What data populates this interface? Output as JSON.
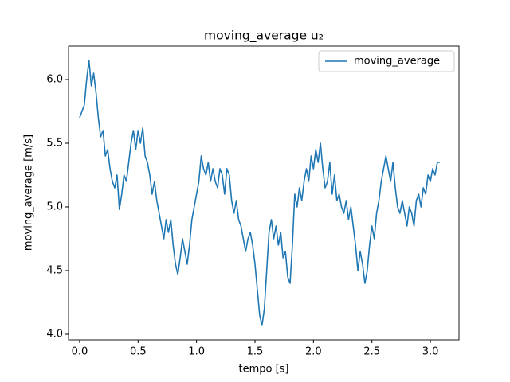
{
  "chart_data": {
    "type": "line",
    "title": "moving_average u₂",
    "xlabel": "tempo [s]",
    "ylabel": "moving_average [m/s]",
    "x": [
      0.0,
      0.02,
      0.04,
      0.06,
      0.08,
      0.1,
      0.12,
      0.14,
      0.16,
      0.18,
      0.2,
      0.22,
      0.24,
      0.26,
      0.28,
      0.3,
      0.32,
      0.34,
      0.36,
      0.38,
      0.4,
      0.42,
      0.44,
      0.46,
      0.48,
      0.5,
      0.52,
      0.54,
      0.56,
      0.58,
      0.6,
      0.62,
      0.64,
      0.66,
      0.68,
      0.7,
      0.72,
      0.74,
      0.76,
      0.78,
      0.8,
      0.82,
      0.84,
      0.86,
      0.88,
      0.9,
      0.92,
      0.94,
      0.96,
      0.98,
      1.0,
      1.02,
      1.04,
      1.06,
      1.08,
      1.1,
      1.12,
      1.14,
      1.16,
      1.18,
      1.2,
      1.22,
      1.24,
      1.26,
      1.28,
      1.3,
      1.32,
      1.34,
      1.36,
      1.38,
      1.4,
      1.42,
      1.44,
      1.46,
      1.48,
      1.5,
      1.52,
      1.54,
      1.56,
      1.58,
      1.6,
      1.62,
      1.64,
      1.66,
      1.68,
      1.7,
      1.72,
      1.74,
      1.76,
      1.78,
      1.8,
      1.82,
      1.84,
      1.86,
      1.88,
      1.9,
      1.92,
      1.94,
      1.96,
      1.98,
      2.0,
      2.02,
      2.04,
      2.06,
      2.08,
      2.1,
      2.12,
      2.14,
      2.16,
      2.18,
      2.2,
      2.22,
      2.24,
      2.26,
      2.28,
      2.3,
      2.32,
      2.34,
      2.36,
      2.38,
      2.4,
      2.42,
      2.44,
      2.46,
      2.48,
      2.5,
      2.52,
      2.54,
      2.56,
      2.58,
      2.6,
      2.62,
      2.64,
      2.66,
      2.68,
      2.7,
      2.72,
      2.74,
      2.76,
      2.78,
      2.8,
      2.82,
      2.84,
      2.86,
      2.88,
      2.9,
      2.92,
      2.94,
      2.96,
      2.98,
      3.0,
      3.02,
      3.04,
      3.06,
      3.08
    ],
    "series": [
      {
        "name": "moving_average",
        "color": "#1f77b4",
        "values": [
          5.7,
          5.75,
          5.8,
          6.0,
          6.15,
          5.95,
          6.05,
          5.9,
          5.7,
          5.55,
          5.6,
          5.4,
          5.45,
          5.3,
          5.2,
          5.15,
          5.25,
          4.98,
          5.1,
          5.25,
          5.2,
          5.35,
          5.5,
          5.6,
          5.45,
          5.6,
          5.5,
          5.62,
          5.4,
          5.35,
          5.25,
          5.1,
          5.2,
          5.05,
          4.95,
          4.85,
          4.75,
          4.9,
          4.8,
          4.9,
          4.7,
          4.55,
          4.47,
          4.6,
          4.75,
          4.65,
          4.55,
          4.7,
          4.9,
          5.0,
          5.1,
          5.2,
          5.4,
          5.3,
          5.25,
          5.35,
          5.2,
          5.3,
          5.2,
          5.15,
          5.3,
          5.25,
          5.1,
          5.3,
          5.25,
          5.05,
          4.95,
          5.05,
          4.9,
          4.85,
          4.75,
          4.65,
          4.75,
          4.8,
          4.7,
          4.55,
          4.35,
          4.15,
          4.07,
          4.2,
          4.5,
          4.8,
          4.9,
          4.75,
          4.85,
          4.7,
          4.8,
          4.6,
          4.65,
          4.45,
          4.4,
          4.7,
          5.1,
          5.0,
          5.15,
          5.05,
          5.2,
          5.3,
          5.2,
          5.4,
          5.3,
          5.45,
          5.35,
          5.5,
          5.3,
          5.15,
          5.2,
          5.35,
          5.1,
          5.25,
          5.05,
          5.1,
          5.0,
          4.95,
          5.05,
          4.9,
          5.0,
          4.85,
          4.7,
          4.5,
          4.65,
          4.55,
          4.4,
          4.5,
          4.7,
          4.85,
          4.75,
          4.95,
          5.05,
          5.2,
          5.3,
          5.4,
          5.3,
          5.2,
          5.35,
          5.15,
          5.0,
          4.95,
          5.05,
          4.95,
          4.85,
          5.0,
          4.95,
          4.85,
          5.05,
          5.1,
          5.0,
          5.15,
          5.1,
          5.25,
          5.2,
          5.3,
          5.25,
          5.35,
          5.35
        ]
      }
    ],
    "xlim": [
      -0.095,
      3.245
    ],
    "ylim": [
      3.956,
      6.2625
    ],
    "xticks": [
      {
        "value": 0,
        "label": "0.0"
      },
      0.5,
      {
        "value": 1,
        "label": "1.0"
      },
      1.5,
      {
        "value": 2,
        "label": "2.0"
      },
      2.5,
      {
        "value": 3,
        "label": "3.0"
      }
    ],
    "yticks": [
      {
        "value": 4,
        "label": "4.0"
      },
      4.5,
      {
        "value": 5,
        "label": "5.0"
      },
      5.5,
      {
        "value": 6,
        "label": "6.0"
      }
    ],
    "grid": false,
    "legend": "upper right"
  }
}
